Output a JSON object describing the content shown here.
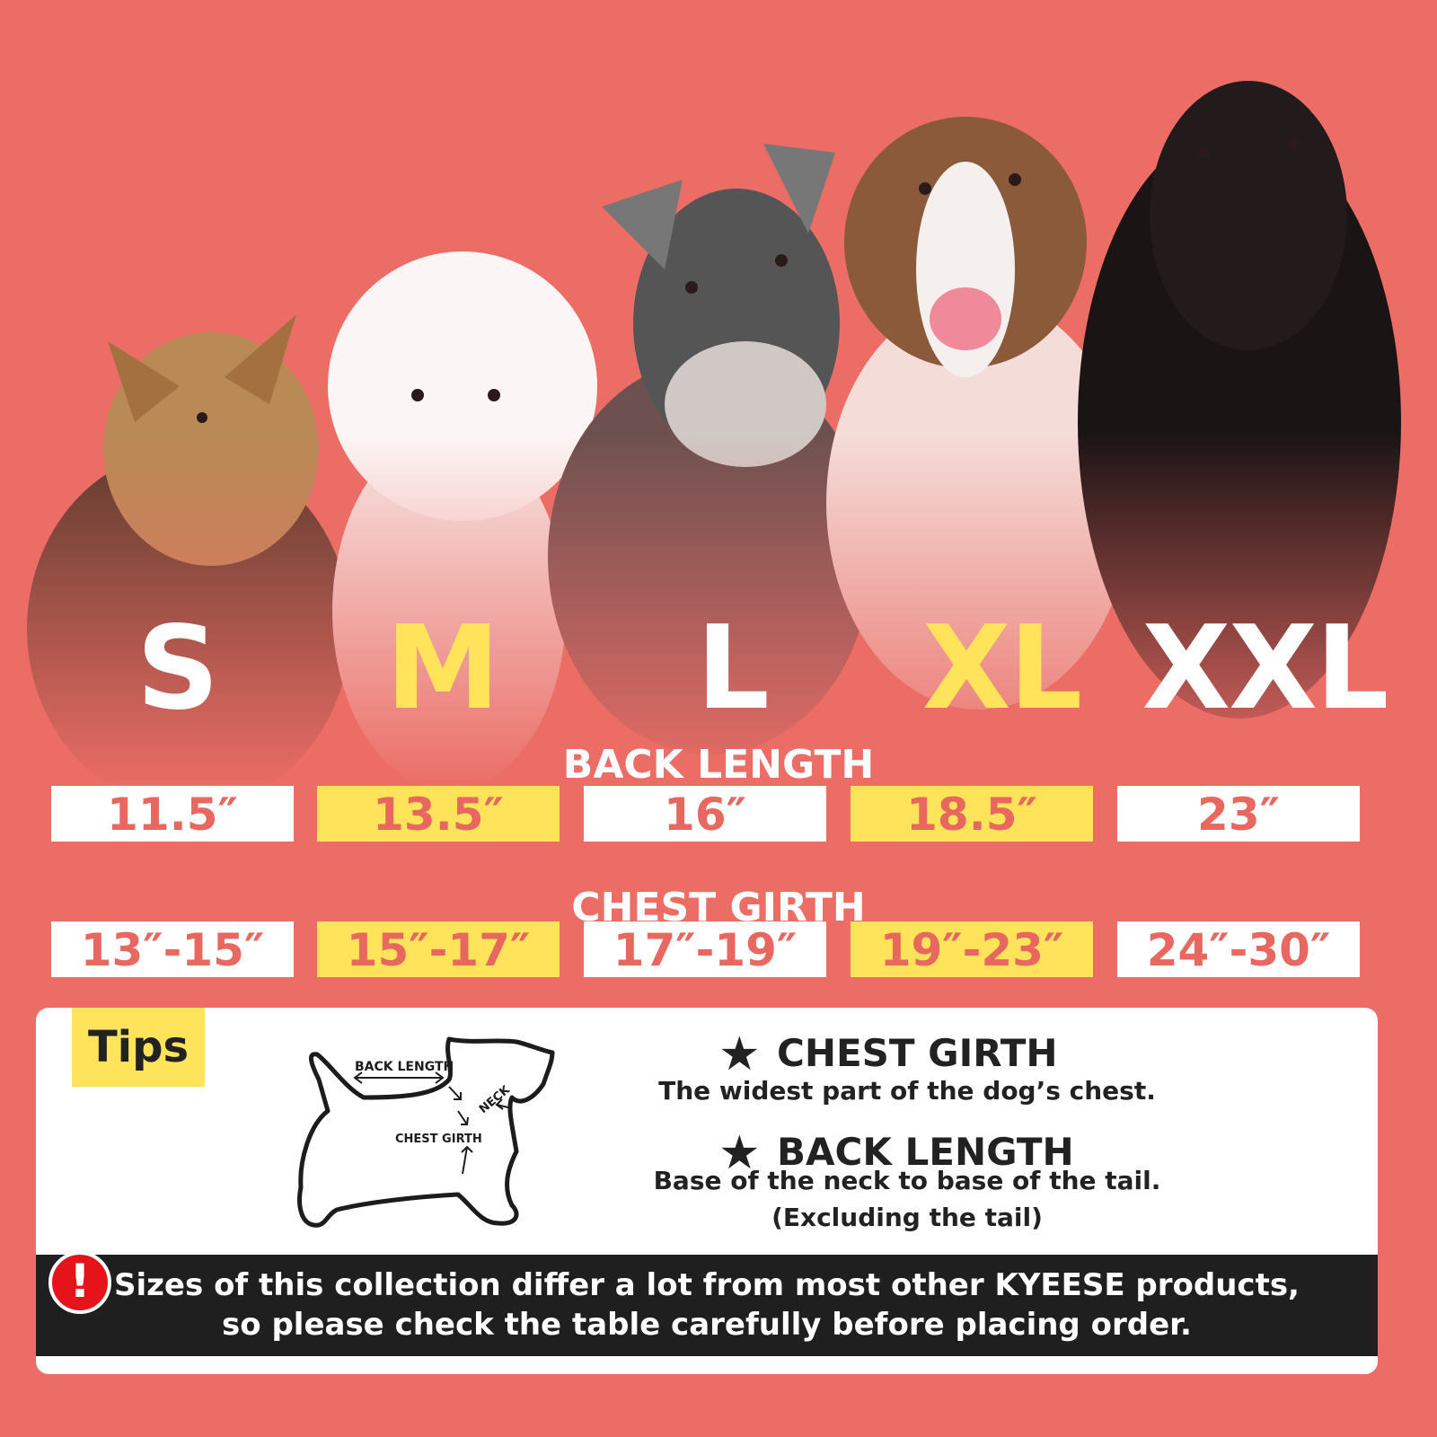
{
  "sizes": [
    {
      "label": "S",
      "back_length": "11.5″",
      "chest_girth": "13″-15″",
      "highlight": false
    },
    {
      "label": "M",
      "back_length": "13.5″",
      "chest_girth": "15″-17″",
      "highlight": true
    },
    {
      "label": "L",
      "back_length": "16″",
      "chest_girth": "17″-19″",
      "highlight": false
    },
    {
      "label": "XL",
      "back_length": "18.5″",
      "chest_girth": "19″-23″",
      "highlight": true
    },
    {
      "label": "XXL",
      "back_length": "23″",
      "chest_girth": "24″-30″",
      "highlight": false
    }
  ],
  "headers": {
    "back_length": "BACK LENGTH",
    "chest_girth": "CHEST GIRTH"
  },
  "tips": {
    "label": "Tips",
    "diagram": {
      "back_length": "BACK LENGTH",
      "neck": "NECK",
      "chest_girth": "CHEST GIRTH"
    },
    "chest_title": "CHEST GIRTH",
    "chest_desc": "The widest part of the dog’s chest.",
    "back_title": "BACK LENGTH",
    "back_desc": "Base of the neck to base of the tail.",
    "back_note": "(Excluding the tail)"
  },
  "warning": {
    "icon": "exclamation-icon",
    "line1": "Sizes of this collection differ a lot from most other KYEESE products,",
    "line2": "so please check the table carefully before placing order."
  },
  "colors": {
    "background": "#EC6D66",
    "highlight": "#FFE35A",
    "value_text": "#E8675F",
    "warning_bar": "#1F1F1F"
  }
}
